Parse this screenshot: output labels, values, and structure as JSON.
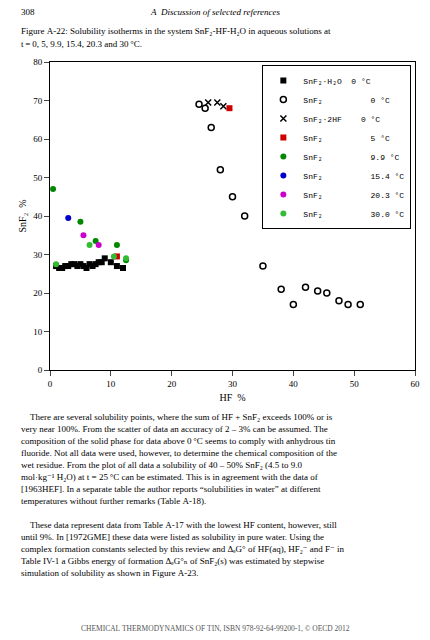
{
  "chart_data": {
    "type": "scatter",
    "title": "Figure A-22: Solubility isotherms in the system SnF₂-HF-H₂O in aqueous solutions at",
    "subtitle": "t = 0, 5, 9.9, 15.4, 20.3 and 30 °C.",
    "annotations": [
      "308",
      "A  Discussion of selected references",
      "    There are several solubility points, where the sum of HF + SnF₂ exceeds 100% or is very near 100%. From the scatter of data an accuracy of 2 – 3% can be assumed. The composition of the solid phase for data above 0 °C seems to comply with anhydrous tin fluoride. Not all data were used, however, to determine the chemical composition of the wet residue. From the plot of all data a solubility of 40 – 50% SnF₂ (4.5 to 9.0 mol·kg⁻¹ H₂O) at t = 25 °C can be estimated. This is in agreement with the data of [1963HEF]. In a separate table the author reports “solubilities in water” at different temperatures without further remarks (Table A-18).",
      "    These data represent data from Table A-17 with the lowest HF content, however, still until 9%. In [1972GME] these data were listed as solubility in pure water. Using the complex formation constants selected by this review and ΔₑG° of HF(aq), HF₂⁻ and F⁻ in Table IV-1 a Gibbs energy of formation ΔₑG°ₙ of SnF₂(s) was estimated by stepwise simulation of solubility as shown in Figure A-23.",
      "CHEMICAL THERMODYNAMICS OF TIN, ISBN 978-92-64-99200-1, © OECD 2012"
    ],
    "xlabel": "HF  %",
    "ylabel": "SnF₂  %",
    "xlim": [
      0,
      60
    ],
    "ylim": [
      0,
      80
    ],
    "xticks": [
      0,
      10,
      20,
      30,
      40,
      50,
      60
    ],
    "yticks": [
      0,
      10,
      20,
      30,
      40,
      50,
      60,
      70,
      80
    ],
    "grid": false,
    "legend": "upper right",
    "series": [
      {
        "name": "SnF₂·H₂O  0 °C",
        "marker": "square",
        "color": "black",
        "x": [
          1.0,
          1.5,
          2.0,
          2.5,
          3.0,
          3.5,
          4.0,
          4.5,
          5.0,
          5.5,
          6.0,
          6.5,
          7.0,
          7.5,
          8.0,
          8.5,
          9.0,
          10.0,
          11.0,
          12.0
        ],
        "values": [
          27.0,
          26.5,
          26.5,
          27.0,
          27.0,
          27.5,
          27.5,
          27.0,
          27.5,
          27.0,
          26.5,
          27.5,
          27.0,
          27.5,
          28.0,
          28.0,
          29.0,
          28.0,
          27.0,
          26.5
        ]
      },
      {
        "name": "SnF₂          0 °C",
        "marker": "circle-open",
        "color": "black",
        "x": [
          24.5,
          25.5,
          26.5,
          28.0,
          30.0,
          32.0,
          35.0,
          38.0,
          40.0,
          42.0,
          44.0,
          45.5,
          47.5,
          49.0,
          51.0
        ],
        "values": [
          69.0,
          68.0,
          63.0,
          52.0,
          45.0,
          40.0,
          27.0,
          21.0,
          17.0,
          21.5,
          20.5,
          20.0,
          18.0,
          17.0,
          17.0
        ]
      },
      {
        "name": "SnF₂·2HF    0 °C",
        "marker": "x",
        "color": "black",
        "x": [
          26.0,
          27.5,
          28.5
        ],
        "values": [
          69.5,
          69.5,
          68.5
        ]
      },
      {
        "name": "SnF₂          5 °C",
        "marker": "square",
        "color": "#cc0000",
        "x": [
          11.0,
          29.5
        ],
        "values": [
          29.5,
          68.0
        ]
      },
      {
        "name": "SnF₂          9.9 °C",
        "marker": "circle",
        "color": "#008800",
        "x": [
          0.5,
          5.0,
          7.5,
          11.0,
          12.5
        ],
        "values": [
          47.0,
          38.5,
          33.5,
          32.5,
          28.5
        ]
      },
      {
        "name": "SnF₂          15.4 °C",
        "marker": "circle",
        "color": "#0000cc",
        "x": [
          3.0
        ],
        "values": [
          39.5
        ]
      },
      {
        "name": "SnF₂          20.3 °C",
        "marker": "circle",
        "color": "#cc00cc",
        "x": [
          5.5,
          8.0
        ],
        "values": [
          35.0,
          32.5
        ]
      },
      {
        "name": "SnF₂          30.0 °C",
        "marker": "circle",
        "color": "#33bb33",
        "x": [
          1.0,
          6.5,
          10.5,
          12.5
        ],
        "values": [
          27.5,
          32.5,
          29.5,
          29.0
        ]
      }
    ]
  }
}
